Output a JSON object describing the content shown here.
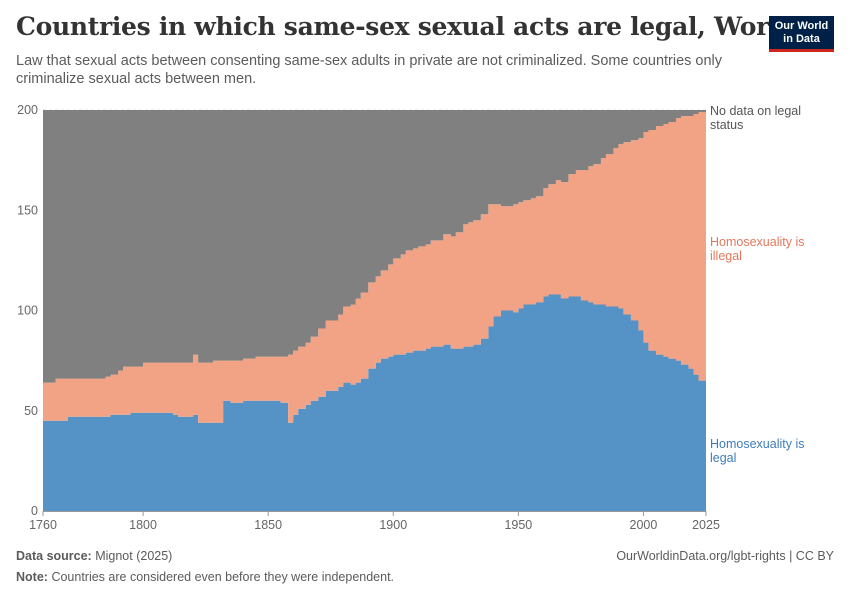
{
  "header": {
    "title": "Countries in which same-sex sexual acts are legal, World",
    "subtitle": "Law that sexual acts between consenting same-sex adults in private are not criminalized. Some countries only criminalize sexual acts between men.",
    "logo_line1": "Our World",
    "logo_line2": "in Data"
  },
  "footer": {
    "source_label": "Data source:",
    "source_value": "Mignot (2025)",
    "note_label": "Note:",
    "note_value": "Countries are considered even before they were independent.",
    "url": "OurWorldinData.org/lgbt-rights | CC BY"
  },
  "colors": {
    "legal": "#5592c6",
    "illegal": "#f2a385",
    "nodata": "#808080"
  },
  "chart_data": {
    "type": "area",
    "stacked": true,
    "title": "Countries in which same-sex sexual acts are legal, World",
    "xlabel": "",
    "ylabel": "",
    "xlim": [
      1760,
      2025
    ],
    "ylim": [
      0,
      200
    ],
    "x_ticks": [
      1760,
      1800,
      1850,
      1900,
      1950,
      2000,
      2025
    ],
    "y_ticks": [
      0,
      50,
      100,
      150,
      200
    ],
    "legend_position": "right",
    "x": [
      1760,
      1762,
      1765,
      1770,
      1775,
      1780,
      1785,
      1787,
      1790,
      1792,
      1795,
      1800,
      1805,
      1810,
      1812,
      1814,
      1820,
      1822,
      1825,
      1828,
      1830,
      1832,
      1835,
      1840,
      1845,
      1848,
      1850,
      1855,
      1857,
      1858,
      1860,
      1862,
      1865,
      1867,
      1870,
      1873,
      1875,
      1878,
      1880,
      1883,
      1885,
      1887,
      1890,
      1893,
      1895,
      1898,
      1900,
      1903,
      1905,
      1908,
      1910,
      1913,
      1915,
      1918,
      1920,
      1923,
      1925,
      1928,
      1930,
      1932,
      1935,
      1938,
      1940,
      1943,
      1945,
      1948,
      1950,
      1952,
      1955,
      1957,
      1960,
      1962,
      1965,
      1967,
      1970,
      1973,
      1975,
      1978,
      1980,
      1983,
      1985,
      1988,
      1990,
      1992,
      1995,
      1998,
      2000,
      2002,
      2005,
      2008,
      2010,
      2013,
      2015,
      2018,
      2020,
      2022,
      2025
    ],
    "series": [
      {
        "name": "Homosexuality is legal",
        "values": [
          45,
          45,
          45,
          47,
          47,
          47,
          47,
          48,
          48,
          48,
          49,
          49,
          49,
          49,
          48,
          47,
          48,
          44,
          44,
          44,
          44,
          55,
          54,
          55,
          55,
          55,
          55,
          54,
          54,
          44,
          48,
          51,
          53,
          55,
          57,
          60,
          60,
          62,
          64,
          63,
          64,
          66,
          71,
          74,
          76,
          77,
          78,
          78,
          79,
          80,
          80,
          81,
          82,
          82,
          83,
          81,
          81,
          82,
          82,
          83,
          86,
          92,
          97,
          100,
          100,
          99,
          101,
          103,
          103,
          104,
          107,
          108,
          108,
          106,
          107,
          107,
          105,
          104,
          103,
          103,
          102,
          102,
          101,
          98,
          95,
          90,
          84,
          80,
          78,
          77,
          76,
          75,
          73,
          71,
          68,
          65,
          61
        ]
      },
      {
        "name": "Homosexuality is illegal",
        "values": [
          19,
          19,
          21,
          19,
          19,
          19,
          20,
          20,
          22,
          24,
          23,
          25,
          25,
          25,
          26,
          27,
          30,
          30,
          30,
          31,
          31,
          20,
          21,
          21,
          22,
          22,
          22,
          23,
          23,
          34,
          32,
          31,
          31,
          32,
          34,
          35,
          35,
          36,
          38,
          40,
          42,
          43,
          43,
          43,
          44,
          46,
          48,
          50,
          51,
          51,
          52,
          52,
          53,
          53,
          55,
          56,
          58,
          61,
          62,
          62,
          62,
          61,
          56,
          52,
          52,
          54,
          53,
          52,
          53,
          53,
          54,
          55,
          57,
          58,
          61,
          63,
          65,
          68,
          70,
          73,
          76,
          79,
          82,
          86,
          90,
          96,
          105,
          110,
          114,
          116,
          118,
          121,
          124,
          126,
          130,
          134,
          138
        ]
      },
      {
        "name": "No data on legal status",
        "values": [
          136,
          136,
          134,
          134,
          134,
          134,
          133,
          132,
          130,
          128,
          128,
          126,
          126,
          126,
          126,
          126,
          122,
          126,
          126,
          125,
          125,
          125,
          125,
          124,
          123,
          123,
          123,
          123,
          123,
          122,
          120,
          118,
          116,
          113,
          109,
          105,
          105,
          102,
          98,
          97,
          94,
          91,
          86,
          83,
          80,
          77,
          74,
          72,
          70,
          69,
          68,
          67,
          65,
          65,
          62,
          63,
          61,
          57,
          56,
          55,
          52,
          47,
          47,
          48,
          48,
          47,
          46,
          45,
          44,
          43,
          39,
          37,
          35,
          36,
          32,
          30,
          30,
          28,
          27,
          24,
          22,
          19,
          17,
          16,
          15,
          14,
          11,
          10,
          8,
          7,
          6,
          4,
          3,
          3,
          2,
          1,
          1
        ]
      }
    ]
  }
}
